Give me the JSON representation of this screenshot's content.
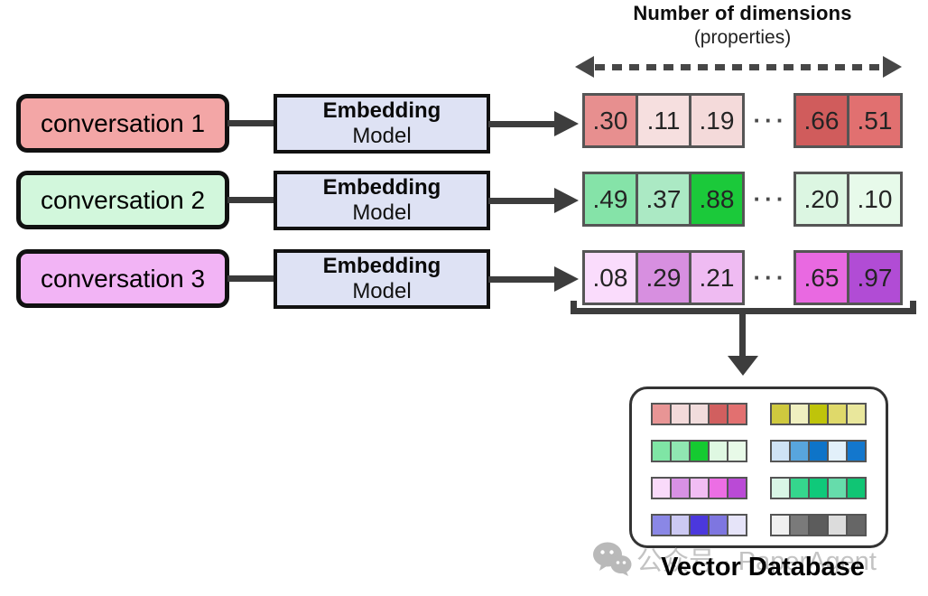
{
  "header": {
    "title": "Number of dimensions",
    "subtitle": "(properties)"
  },
  "rows": [
    {
      "conversation": {
        "label": "conversation 1",
        "bg": "#f3a6a6"
      },
      "embedding": {
        "line1": "Embedding",
        "line2": "Model"
      },
      "vector": {
        "main_cells": [
          {
            "value": ".30",
            "bg": "#e78f8f"
          },
          {
            "value": ".11",
            "bg": "#f6dfdf"
          },
          {
            "value": ".19",
            "bg": "#f4dada"
          }
        ],
        "ellipsis": "···",
        "tail_cells": [
          {
            "value": ".66",
            "bg": "#d05c5c"
          },
          {
            "value": ".51",
            "bg": "#e17070"
          }
        ]
      }
    },
    {
      "conversation": {
        "label": "conversation 2",
        "bg": "#d2f7dc"
      },
      "embedding": {
        "line1": "Embedding",
        "line2": "Model"
      },
      "vector": {
        "main_cells": [
          {
            "value": ".49",
            "bg": "#85e3a8"
          },
          {
            "value": ".37",
            "bg": "#abe9c4"
          },
          {
            "value": ".88",
            "bg": "#1bc93a"
          }
        ],
        "ellipsis": "···",
        "tail_cells": [
          {
            "value": ".20",
            "bg": "#dcf6e2"
          },
          {
            "value": ".10",
            "bg": "#e7faea"
          }
        ]
      }
    },
    {
      "conversation": {
        "label": "conversation 3",
        "bg": "#f2b4f5"
      },
      "embedding": {
        "line1": "Embedding",
        "line2": "Model"
      },
      "vector": {
        "main_cells": [
          {
            "value": ".08",
            "bg": "#fadcfc"
          },
          {
            "value": ".29",
            "bg": "#d78fe0"
          },
          {
            "value": ".21",
            "bg": "#efbbf2"
          }
        ],
        "ellipsis": "···",
        "tail_cells": [
          {
            "value": ".65",
            "bg": "#e969e1"
          },
          {
            "value": ".97",
            "bg": "#b14cd5"
          }
        ]
      }
    }
  ],
  "database": {
    "label": "Vector Database",
    "strips": [
      {
        "name": "red-vector",
        "cells": [
          "#e89595",
          "#f3dada",
          "#f1dcdc",
          "#d15f5f",
          "#e27070"
        ]
      },
      {
        "name": "yellow-vector",
        "cells": [
          "#cfc93e",
          "#f0f0c0",
          "#bfc40a",
          "#dfd96a",
          "#e9e79c"
        ]
      },
      {
        "name": "green-vector",
        "cells": [
          "#7fe5a5",
          "#90e6b2",
          "#15ca31",
          "#dff8e2",
          "#e8fae8"
        ]
      },
      {
        "name": "blue-vector",
        "cells": [
          "#cfe3f5",
          "#58a5dd",
          "#0e74c8",
          "#e2f0fa",
          "#1377cd"
        ]
      },
      {
        "name": "purple-vector",
        "cells": [
          "#f9dafa",
          "#d791e4",
          "#f1bdf3",
          "#ec6ee4",
          "#ba4ad6"
        ]
      },
      {
        "name": "emerald-vector",
        "cells": [
          "#d9f6e6",
          "#35d68d",
          "#0fc97a",
          "#66dcab",
          "#10c574"
        ]
      },
      {
        "name": "violet-vector",
        "cells": [
          "#8a87e6",
          "#ccc9f3",
          "#4b38dd",
          "#7e76e0",
          "#e6e4f9"
        ]
      },
      {
        "name": "gray-vector",
        "cells": [
          "#f0f0f0",
          "#7a7a7a",
          "#5c5c5c",
          "#dcdcdc",
          "#666666"
        ]
      }
    ]
  },
  "watermark": {
    "text": "公众号 · PaperAgent",
    "icon": "wechat-icon",
    "color": "#c3c3c3"
  },
  "colors": {
    "line": "#3d3d3d",
    "cell_border": "#555555",
    "embed_bg": "#dee2f4",
    "box_border": "#111111"
  }
}
